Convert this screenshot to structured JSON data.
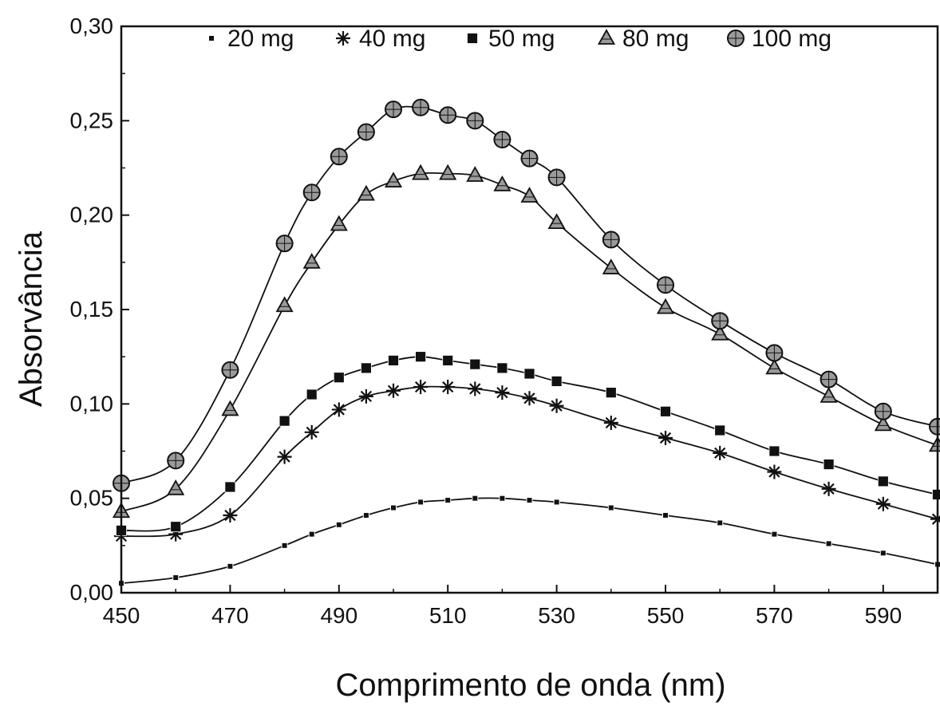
{
  "chart_data": {
    "type": "line",
    "title": "",
    "xlabel": "Comprimento de onda (nm)",
    "ylabel": "Absorvância",
    "xlim": [
      450,
      600
    ],
    "ylim": [
      0.0,
      0.3
    ],
    "x_ticks": [
      450,
      470,
      490,
      510,
      530,
      550,
      570,
      590
    ],
    "x_tick_labels": [
      "450",
      "470",
      "490",
      "510",
      "530",
      "550",
      "570",
      "590"
    ],
    "y_ticks": [
      0.0,
      0.05,
      0.1,
      0.15,
      0.2,
      0.25,
      0.3
    ],
    "y_tick_labels": [
      "0,00",
      "0,05",
      "0,10",
      "0,15",
      "0,20",
      "0,25",
      "0,30"
    ],
    "grid": false,
    "legend_position": "top",
    "line_color": "#111111",
    "series": [
      {
        "name": "20 mg",
        "marker": "small-square",
        "x": [
          450,
          460,
          470,
          480,
          485,
          490,
          495,
          500,
          505,
          510,
          515,
          520,
          525,
          530,
          540,
          550,
          560,
          570,
          580,
          590,
          600
        ],
        "values": [
          0.005,
          0.008,
          0.014,
          0.025,
          0.031,
          0.036,
          0.041,
          0.045,
          0.048,
          0.049,
          0.05,
          0.05,
          0.049,
          0.048,
          0.045,
          0.041,
          0.037,
          0.031,
          0.026,
          0.021,
          0.015
        ]
      },
      {
        "name": "40 mg",
        "marker": "asterisk",
        "x": [
          450,
          460,
          470,
          480,
          485,
          490,
          495,
          500,
          505,
          510,
          515,
          520,
          525,
          530,
          540,
          550,
          560,
          570,
          580,
          590,
          600
        ],
        "values": [
          0.03,
          0.031,
          0.041,
          0.072,
          0.085,
          0.097,
          0.104,
          0.107,
          0.109,
          0.109,
          0.108,
          0.106,
          0.103,
          0.099,
          0.09,
          0.082,
          0.074,
          0.064,
          0.055,
          0.047,
          0.039
        ]
      },
      {
        "name": "50 mg",
        "marker": "square",
        "x": [
          450,
          460,
          470,
          480,
          485,
          490,
          495,
          500,
          505,
          510,
          515,
          520,
          525,
          530,
          540,
          550,
          560,
          570,
          580,
          590,
          600
        ],
        "values": [
          0.033,
          0.035,
          0.056,
          0.091,
          0.105,
          0.114,
          0.119,
          0.123,
          0.125,
          0.123,
          0.121,
          0.119,
          0.116,
          0.112,
          0.106,
          0.096,
          0.086,
          0.075,
          0.068,
          0.059,
          0.052
        ]
      },
      {
        "name": "80 mg",
        "marker": "triangle",
        "x": [
          450,
          460,
          470,
          480,
          485,
          490,
          495,
          500,
          505,
          510,
          515,
          520,
          525,
          530,
          540,
          550,
          560,
          570,
          580,
          590,
          600
        ],
        "values": [
          0.043,
          0.055,
          0.097,
          0.152,
          0.175,
          0.195,
          0.211,
          0.218,
          0.222,
          0.222,
          0.221,
          0.216,
          0.21,
          0.196,
          0.172,
          0.151,
          0.137,
          0.119,
          0.104,
          0.089,
          0.078
        ]
      },
      {
        "name": "100 mg",
        "marker": "circle",
        "x": [
          450,
          460,
          470,
          480,
          485,
          490,
          495,
          500,
          505,
          510,
          515,
          520,
          525,
          530,
          540,
          550,
          560,
          570,
          580,
          590,
          600
        ],
        "values": [
          0.058,
          0.07,
          0.118,
          0.185,
          0.212,
          0.231,
          0.244,
          0.256,
          0.257,
          0.253,
          0.25,
          0.24,
          0.23,
          0.22,
          0.187,
          0.163,
          0.144,
          0.127,
          0.113,
          0.096,
          0.088
        ]
      }
    ]
  }
}
